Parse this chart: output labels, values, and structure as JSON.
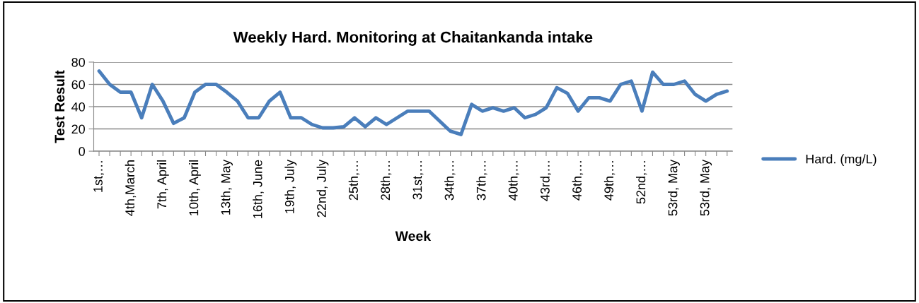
{
  "chart_data": {
    "type": "line",
    "title": "Weekly Hard. Monitoring at Chaitankanda intake",
    "xlabel": "Week",
    "ylabel": "Test Result",
    "categories": [
      "1st,…",
      null,
      null,
      "4th,March",
      null,
      null,
      "7th, April",
      null,
      null,
      "10th, April",
      null,
      null,
      "13th, May",
      null,
      null,
      "16th, June",
      null,
      null,
      "19th, July",
      null,
      null,
      "22nd, July",
      null,
      null,
      "25th,…",
      null,
      null,
      "28th,…",
      null,
      null,
      "31st,…",
      null,
      null,
      "34th,…",
      null,
      null,
      "37th,…",
      null,
      null,
      "40th,…",
      null,
      null,
      "43rd,…",
      null,
      null,
      "46th,…",
      null,
      null,
      "49th,…",
      null,
      null,
      "52nd,…",
      null,
      null,
      "53rd, May",
      null,
      null,
      "53rd, May",
      null,
      null
    ],
    "series": [
      {
        "name": "Hard. (mg/L)",
        "color": "#4a7ebb",
        "values": [
          72,
          60,
          53,
          53,
          30,
          60,
          45,
          25,
          30,
          53,
          60,
          60,
          53,
          45,
          30,
          30,
          45,
          53,
          30,
          30,
          24,
          21,
          21,
          22,
          30,
          22,
          30,
          24,
          30,
          36,
          36,
          36,
          27,
          18,
          15,
          42,
          36,
          39,
          36,
          39,
          30,
          33,
          39,
          57,
          52,
          36,
          48,
          48,
          45,
          60,
          63,
          36,
          71,
          60,
          60,
          63,
          51,
          45,
          51,
          54
        ]
      }
    ],
    "ylim": [
      0,
      80
    ],
    "yticks": [
      0,
      20,
      40,
      60,
      80
    ],
    "grid": "y",
    "legend": "right",
    "marker": "none",
    "line_style": "solid"
  }
}
